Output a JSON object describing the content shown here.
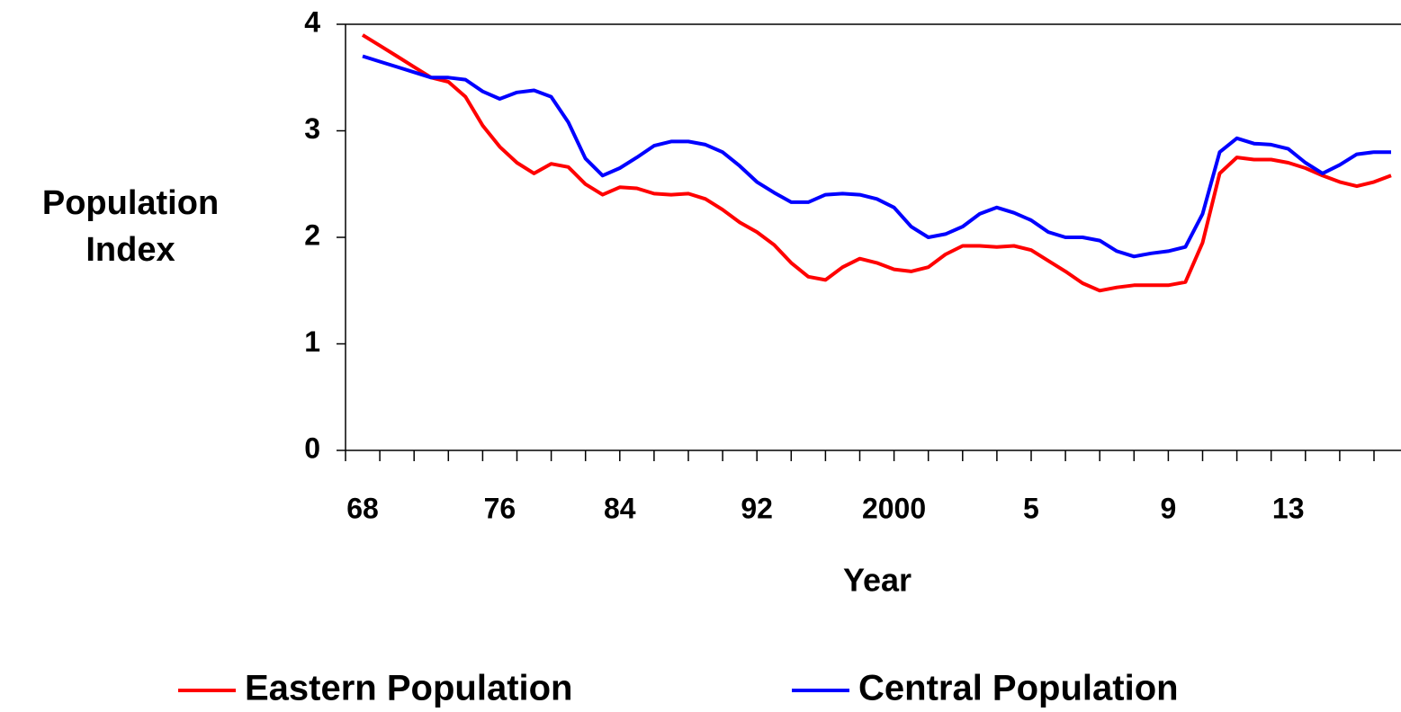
{
  "chart_data": {
    "type": "line",
    "x_label": "Year",
    "y_label": "Population Index",
    "categories": [
      "68",
      null,
      null,
      null,
      null,
      null,
      null,
      null,
      "76",
      null,
      null,
      null,
      null,
      null,
      null,
      "84",
      null,
      null,
      null,
      null,
      null,
      null,
      null,
      "92",
      null,
      null,
      null,
      null,
      null,
      null,
      null,
      "2000",
      null,
      null,
      null,
      null,
      null,
      null,
      null,
      "5",
      null,
      null,
      null,
      null,
      null,
      null,
      null,
      "9",
      null,
      null,
      null,
      null,
      null,
      null,
      "13",
      null,
      null,
      null,
      null,
      null,
      null
    ],
    "series": [
      {
        "name": "Eastern Population",
        "color": "#ff0000",
        "values": [
          3.9,
          3.8,
          3.7,
          3.6,
          3.5,
          3.46,
          3.32,
          3.05,
          2.85,
          2.7,
          2.6,
          2.69,
          2.66,
          2.5,
          2.4,
          2.47,
          2.46,
          2.41,
          2.4,
          2.41,
          2.36,
          2.26,
          2.14,
          2.05,
          1.93,
          1.76,
          1.63,
          1.6,
          1.72,
          1.8,
          1.76,
          1.7,
          1.68,
          1.72,
          1.84,
          1.92,
          1.92,
          1.91,
          1.92,
          1.88,
          1.78,
          1.68,
          1.57,
          1.5,
          1.53,
          1.55,
          1.55,
          1.55,
          1.58,
          1.95,
          2.6,
          2.75,
          2.73,
          2.73,
          2.7,
          2.65,
          2.58,
          2.52,
          2.48,
          2.52,
          2.58
        ]
      },
      {
        "name": "Central Population",
        "color": "#0000ff",
        "values": [
          3.7,
          3.65,
          3.6,
          3.55,
          3.5,
          3.5,
          3.48,
          3.37,
          3.3,
          3.36,
          3.38,
          3.32,
          3.08,
          2.74,
          2.58,
          2.65,
          2.75,
          2.86,
          2.9,
          2.9,
          2.87,
          2.8,
          2.67,
          2.52,
          2.42,
          2.33,
          2.33,
          2.4,
          2.41,
          2.4,
          2.36,
          2.28,
          2.1,
          2.0,
          2.03,
          2.1,
          2.22,
          2.28,
          2.23,
          2.16,
          2.05,
          2.0,
          2.0,
          1.97,
          1.87,
          1.82,
          1.85,
          1.87,
          1.91,
          2.22,
          2.8,
          2.93,
          2.88,
          2.87,
          2.83,
          2.7,
          2.6,
          2.68,
          2.78,
          2.8,
          2.8
        ]
      }
    ],
    "ylim": [
      0,
      4
    ],
    "yticks": [
      0,
      1,
      2,
      3,
      4
    ],
    "grid": false,
    "legend": "bottom"
  }
}
